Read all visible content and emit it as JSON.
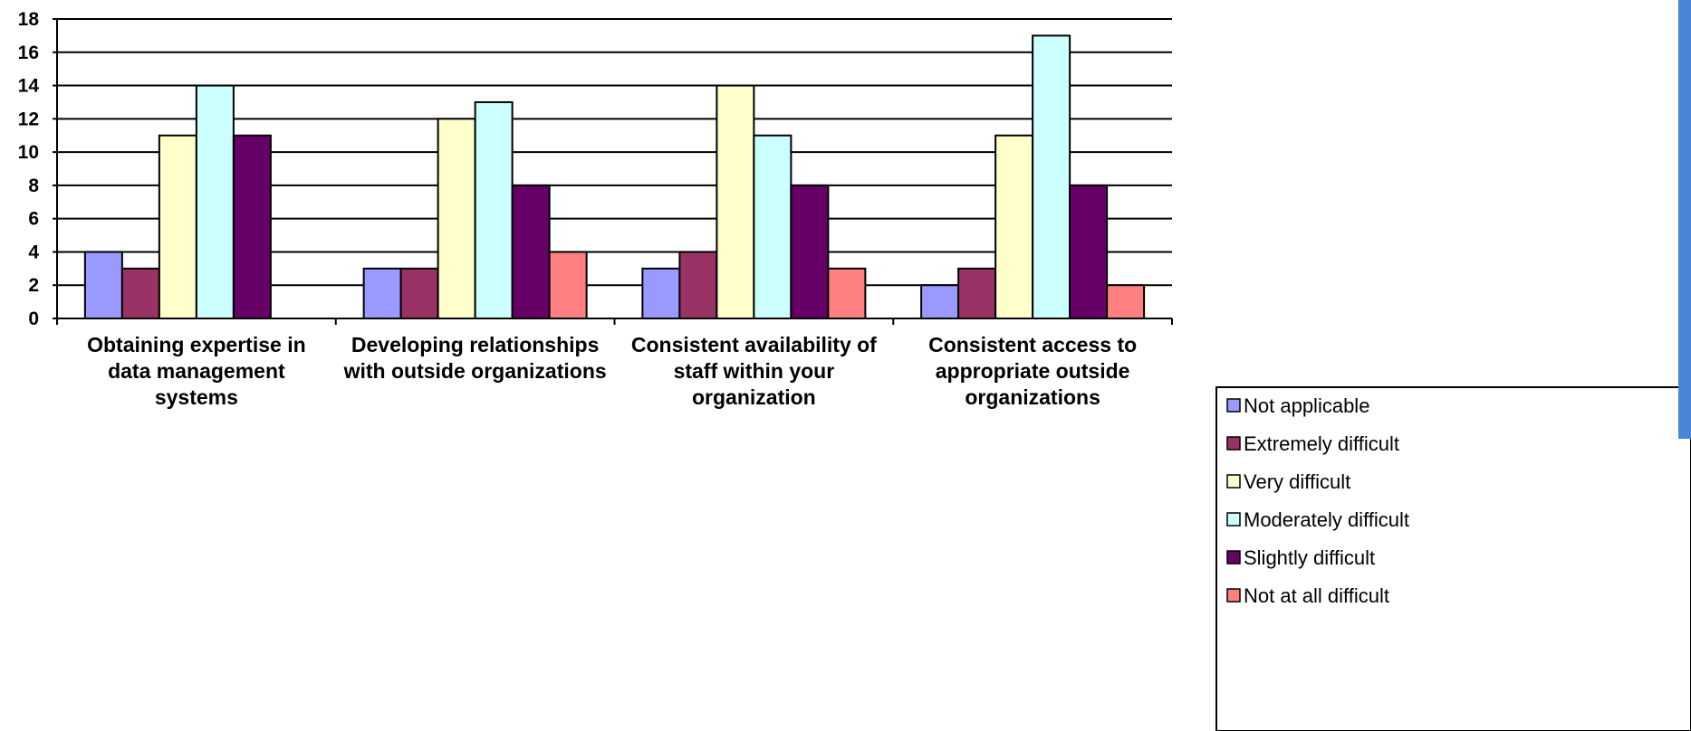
{
  "chart_data": {
    "type": "bar",
    "categories": [
      [
        "Obtaining expertise in",
        "data management",
        "systems"
      ],
      [
        "Developing relationships",
        "with outside organizations"
      ],
      [
        "Consistent availability of",
        "staff within your",
        "organization"
      ],
      [
        "Consistent access to",
        "appropriate outside",
        "organizations"
      ]
    ],
    "series": [
      {
        "name": "Not applicable",
        "color": "#9999ff",
        "values": [
          4,
          3,
          3,
          2
        ]
      },
      {
        "name": "Extremely difficult",
        "color": "#993366",
        "values": [
          3,
          3,
          4,
          3
        ]
      },
      {
        "name": "Very difficult",
        "color": "#ffffcc",
        "values": [
          11,
          12,
          14,
          11
        ]
      },
      {
        "name": "Moderately difficult",
        "color": "#ccffff",
        "values": [
          14,
          13,
          11,
          17
        ]
      },
      {
        "name": "Slightly difficult",
        "color": "#660066",
        "values": [
          11,
          8,
          8,
          8
        ]
      },
      {
        "name": "Not at all difficult",
        "color": "#ff8080",
        "values": [
          0,
          4,
          3,
          2
        ]
      }
    ],
    "yticks": [
      "0",
      "2",
      "4",
      "6",
      "8",
      "10",
      "12",
      "14",
      "16",
      "18"
    ],
    "ylim": [
      0,
      18
    ],
    "grid": true,
    "legend": "bottom-right",
    "title": "",
    "xlabel": "",
    "ylabel": ""
  },
  "colors": {
    "side_bar": "#4a86d8"
  }
}
